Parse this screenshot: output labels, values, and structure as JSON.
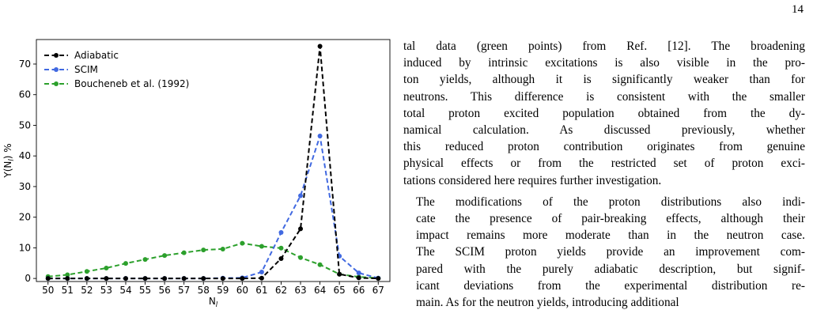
{
  "page": {
    "number": "14",
    "paragraphs": [
      [
        "tal data (green points) from Ref. [12]. The broadening",
        "induced by intrinsic excitations is also visible in the pro-",
        "ton yields, although it is significantly weaker than for",
        "neutrons. This difference is consistent with the smaller",
        "total proton excited population obtained from the dy-",
        "namical calculation. As discussed previously, whether",
        "this reduced proton contribution originates from genuine",
        "physical effects or from the restricted set of proton exci-",
        "tations considered here requires further investigation."
      ],
      [
        "The modifications of the proton distributions also indi-",
        "cate the presence of pair-breaking effects, although their",
        "impact remains more moderate than in the neutron case.",
        "The SCIM proton yields provide an improvement com-",
        "pared with the purely adiabatic description, but signif-",
        "icant deviations from the experimental distribution re-",
        "main. As for the neutron yields, introducing additional"
      ]
    ]
  },
  "chart_data": {
    "type": "line",
    "title": "",
    "xlabel": "N_l",
    "ylabel": "Y(N_l) %",
    "x": [
      50,
      51,
      52,
      53,
      54,
      55,
      56,
      57,
      58,
      59,
      60,
      61,
      62,
      63,
      64,
      65,
      66,
      67
    ],
    "xlim": [
      49.4,
      67.6
    ],
    "ylim": [
      -1,
      78
    ],
    "yticks": [
      0,
      10,
      20,
      30,
      40,
      50,
      60,
      70
    ],
    "legend_position": "top-left",
    "grid": false,
    "series": [
      {
        "name": "Adiabatic",
        "color": "#000000",
        "values": [
          0,
          0,
          0,
          0,
          0,
          0,
          0,
          0,
          0,
          0,
          0,
          0.1,
          6.5,
          16.2,
          75.8,
          1.4,
          0.2,
          0
        ]
      },
      {
        "name": "SCIM",
        "color": "#4169e1",
        "values": [
          0,
          0,
          0,
          0,
          0,
          0,
          0,
          0,
          0,
          0.1,
          0.2,
          2.1,
          15.0,
          27.0,
          46.5,
          7.3,
          1.8,
          0.1
        ]
      },
      {
        "name": "Boucheneb et al. (1992)",
        "color": "#2ca02c",
        "values": [
          0.6,
          1.2,
          2.3,
          3.4,
          4.9,
          6.2,
          7.5,
          8.4,
          9.3,
          9.6,
          11.5,
          10.5,
          9.9,
          6.8,
          4.5,
          1.4,
          0.5,
          0.1
        ]
      }
    ]
  }
}
